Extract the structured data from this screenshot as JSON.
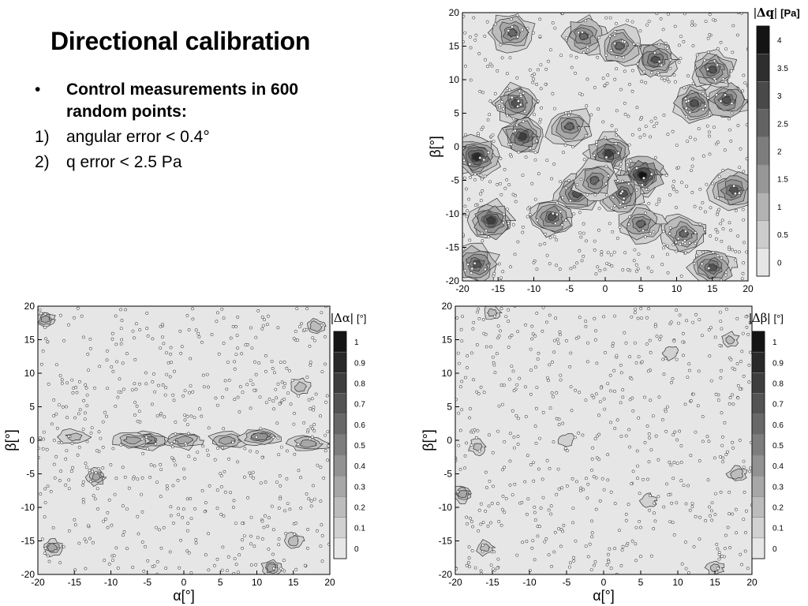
{
  "slide": {
    "title": "Directional calibration",
    "bullet_text": "Control measurements in 600 random points:",
    "bullet_marker": "•",
    "items": [
      {
        "num": "1)",
        "text": "angular error < 0.4°"
      },
      {
        "num": "2)",
        "text": "q error < 2.5 Pa"
      }
    ]
  },
  "colors": {
    "contour_lightest": "#e6e6e6",
    "contour_darkest": "#1a1a1a",
    "line": "#333333"
  },
  "chart_data": [
    {
      "type": "heatmap",
      "id": "dq",
      "title": "",
      "legend_title": "|Δq| [Pa]",
      "legend_title_parts": {
        "pre": "|",
        "sym": "Δq",
        "post": "|",
        "unit": "[Pa]"
      },
      "xlabel": "",
      "ylabel": "β[°]",
      "xlim": [
        -20,
        20
      ],
      "ylim": [
        -20,
        20
      ],
      "xticks": [
        "-20",
        "-15",
        "-10",
        "-5",
        "0",
        "5",
        "10",
        "15",
        "20"
      ],
      "yticks": [
        "20",
        "15",
        "10",
        "5",
        "0",
        "-5",
        "-10",
        "-15",
        "-20"
      ],
      "levels": [
        "4",
        "3.5",
        "3",
        "2.5",
        "2",
        "1.5",
        "1",
        "0.5",
        "0"
      ],
      "level_values": [
        0,
        0.5,
        1,
        1.5,
        2,
        2.5,
        3,
        3.5,
        4,
        4.5
      ],
      "sample_points": 600,
      "peaks": [
        {
          "x": -18,
          "y": -1.5,
          "value": 4
        },
        {
          "x": 5.2,
          "y": -4.2,
          "value": 4.5
        },
        {
          "x": 0.5,
          "y": -1,
          "value": 3.5
        },
        {
          "x": -11.5,
          "y": 1.5,
          "value": 3.5
        },
        {
          "x": -12.5,
          "y": 6.5,
          "value": 3
        },
        {
          "x": -16,
          "y": -11,
          "value": 3.5
        },
        {
          "x": -4,
          "y": -7,
          "value": 3
        },
        {
          "x": -7.5,
          "y": -10.5,
          "value": 3
        },
        {
          "x": 2.5,
          "y": -7,
          "value": 3
        },
        {
          "x": 7,
          "y": 13,
          "value": 3
        },
        {
          "x": 12.5,
          "y": 6.5,
          "value": 3
        },
        {
          "x": 17,
          "y": 7,
          "value": 3
        },
        {
          "x": 15,
          "y": 11.5,
          "value": 3
        },
        {
          "x": 18,
          "y": -6.5,
          "value": 3
        },
        {
          "x": 15,
          "y": -18,
          "value": 3
        },
        {
          "x": -18,
          "y": -17.5,
          "value": 3
        },
        {
          "x": -13,
          "y": 17,
          "value": 2.5
        },
        {
          "x": 11,
          "y": -13,
          "value": 2.5
        },
        {
          "x": -3,
          "y": 16.5,
          "value": 2.5
        },
        {
          "x": 5,
          "y": -11.5,
          "value": 2.5
        },
        {
          "x": -5,
          "y": 3,
          "value": 2.5
        },
        {
          "x": 2,
          "y": 15,
          "value": 2.5
        },
        {
          "x": -1.5,
          "y": -5,
          "value": 2.5
        }
      ]
    },
    {
      "type": "heatmap",
      "id": "dalpha",
      "title": "",
      "legend_title": "|Δα| [°]",
      "legend_title_parts": {
        "pre": "|",
        "sym": "Δα",
        "post": "|",
        "unit": "[°]"
      },
      "xlabel": "α[°]",
      "ylabel": "β[°]",
      "xlim": [
        -20,
        20
      ],
      "ylim": [
        -20,
        20
      ],
      "xticks": [
        "-20",
        "-15",
        "-10",
        "-5",
        "0",
        "5",
        "10",
        "15",
        "20"
      ],
      "yticks": [
        "20",
        "15",
        "10",
        "5",
        "0",
        "-5",
        "-10",
        "-15",
        "-20"
      ],
      "levels": [
        "1",
        "0.9",
        "0.8",
        "0.7",
        "0.6",
        "0.5",
        "0.4",
        "0.3",
        "0.2",
        "0.1",
        "0"
      ],
      "level_values": [
        0.1,
        0.2,
        0.3,
        0.4,
        0.5,
        0.6,
        0.7,
        0.8,
        0.9,
        1
      ],
      "sample_points": 600,
      "peaks": [
        {
          "x": -5,
          "y": 0,
          "value": 0.45
        },
        {
          "x": 0,
          "y": 0,
          "value": 0.35
        },
        {
          "x": 6,
          "y": 0,
          "value": 0.35
        },
        {
          "x": 10.5,
          "y": 0.5,
          "value": 0.4
        },
        {
          "x": 17,
          "y": -0.5,
          "value": 0.35
        },
        {
          "x": -12,
          "y": -5.5,
          "value": 0.3
        },
        {
          "x": -7,
          "y": 0,
          "value": 0.3
        },
        {
          "x": -15,
          "y": 0.5,
          "value": 0.2
        },
        {
          "x": 16,
          "y": 8,
          "value": 0.25
        },
        {
          "x": 15,
          "y": -15,
          "value": 0.25
        },
        {
          "x": -19,
          "y": 18,
          "value": 0.3
        },
        {
          "x": -18,
          "y": -16,
          "value": 0.3
        },
        {
          "x": 12,
          "y": -19,
          "value": 0.3
        },
        {
          "x": 18,
          "y": 17,
          "value": 0.25
        }
      ]
    },
    {
      "type": "heatmap",
      "id": "dbeta",
      "title": "",
      "legend_title": "|Δβ| [°]",
      "legend_title_parts": {
        "pre": "|",
        "sym": "Δβ",
        "post": "|",
        "unit": "[°]"
      },
      "xlabel": "α[°]",
      "ylabel": "β[°]",
      "xlim": [
        -20,
        20
      ],
      "ylim": [
        -20,
        20
      ],
      "xticks": [
        "-20",
        "-15",
        "-10",
        "-5",
        "0",
        "5",
        "10",
        "15",
        "20"
      ],
      "yticks": [
        "20",
        "15",
        "10",
        "5",
        "0",
        "-5",
        "-10",
        "-15",
        "-20"
      ],
      "levels": [
        "1",
        "0.9",
        "0.8",
        "0.7",
        "0.6",
        "0.5",
        "0.4",
        "0.3",
        "0.2",
        "0.1",
        "0"
      ],
      "level_values": [
        0.1,
        0.2,
        0.3,
        0.4,
        0.5,
        0.6,
        0.7,
        0.8,
        0.9,
        1
      ],
      "sample_points": 600,
      "peaks": [
        {
          "x": -19,
          "y": -8,
          "value": 0.3
        },
        {
          "x": -17,
          "y": -1,
          "value": 0.2
        },
        {
          "x": -15,
          "y": 19,
          "value": 0.2
        },
        {
          "x": -16,
          "y": -16,
          "value": 0.2
        },
        {
          "x": 17,
          "y": 15,
          "value": 0.2
        },
        {
          "x": 18,
          "y": -5,
          "value": 0.25
        },
        {
          "x": 15,
          "y": -19,
          "value": 0.2
        },
        {
          "x": 6,
          "y": -9,
          "value": 0.15
        },
        {
          "x": -5,
          "y": 0,
          "value": 0.15
        },
        {
          "x": 9,
          "y": 13,
          "value": 0.15
        }
      ]
    }
  ]
}
